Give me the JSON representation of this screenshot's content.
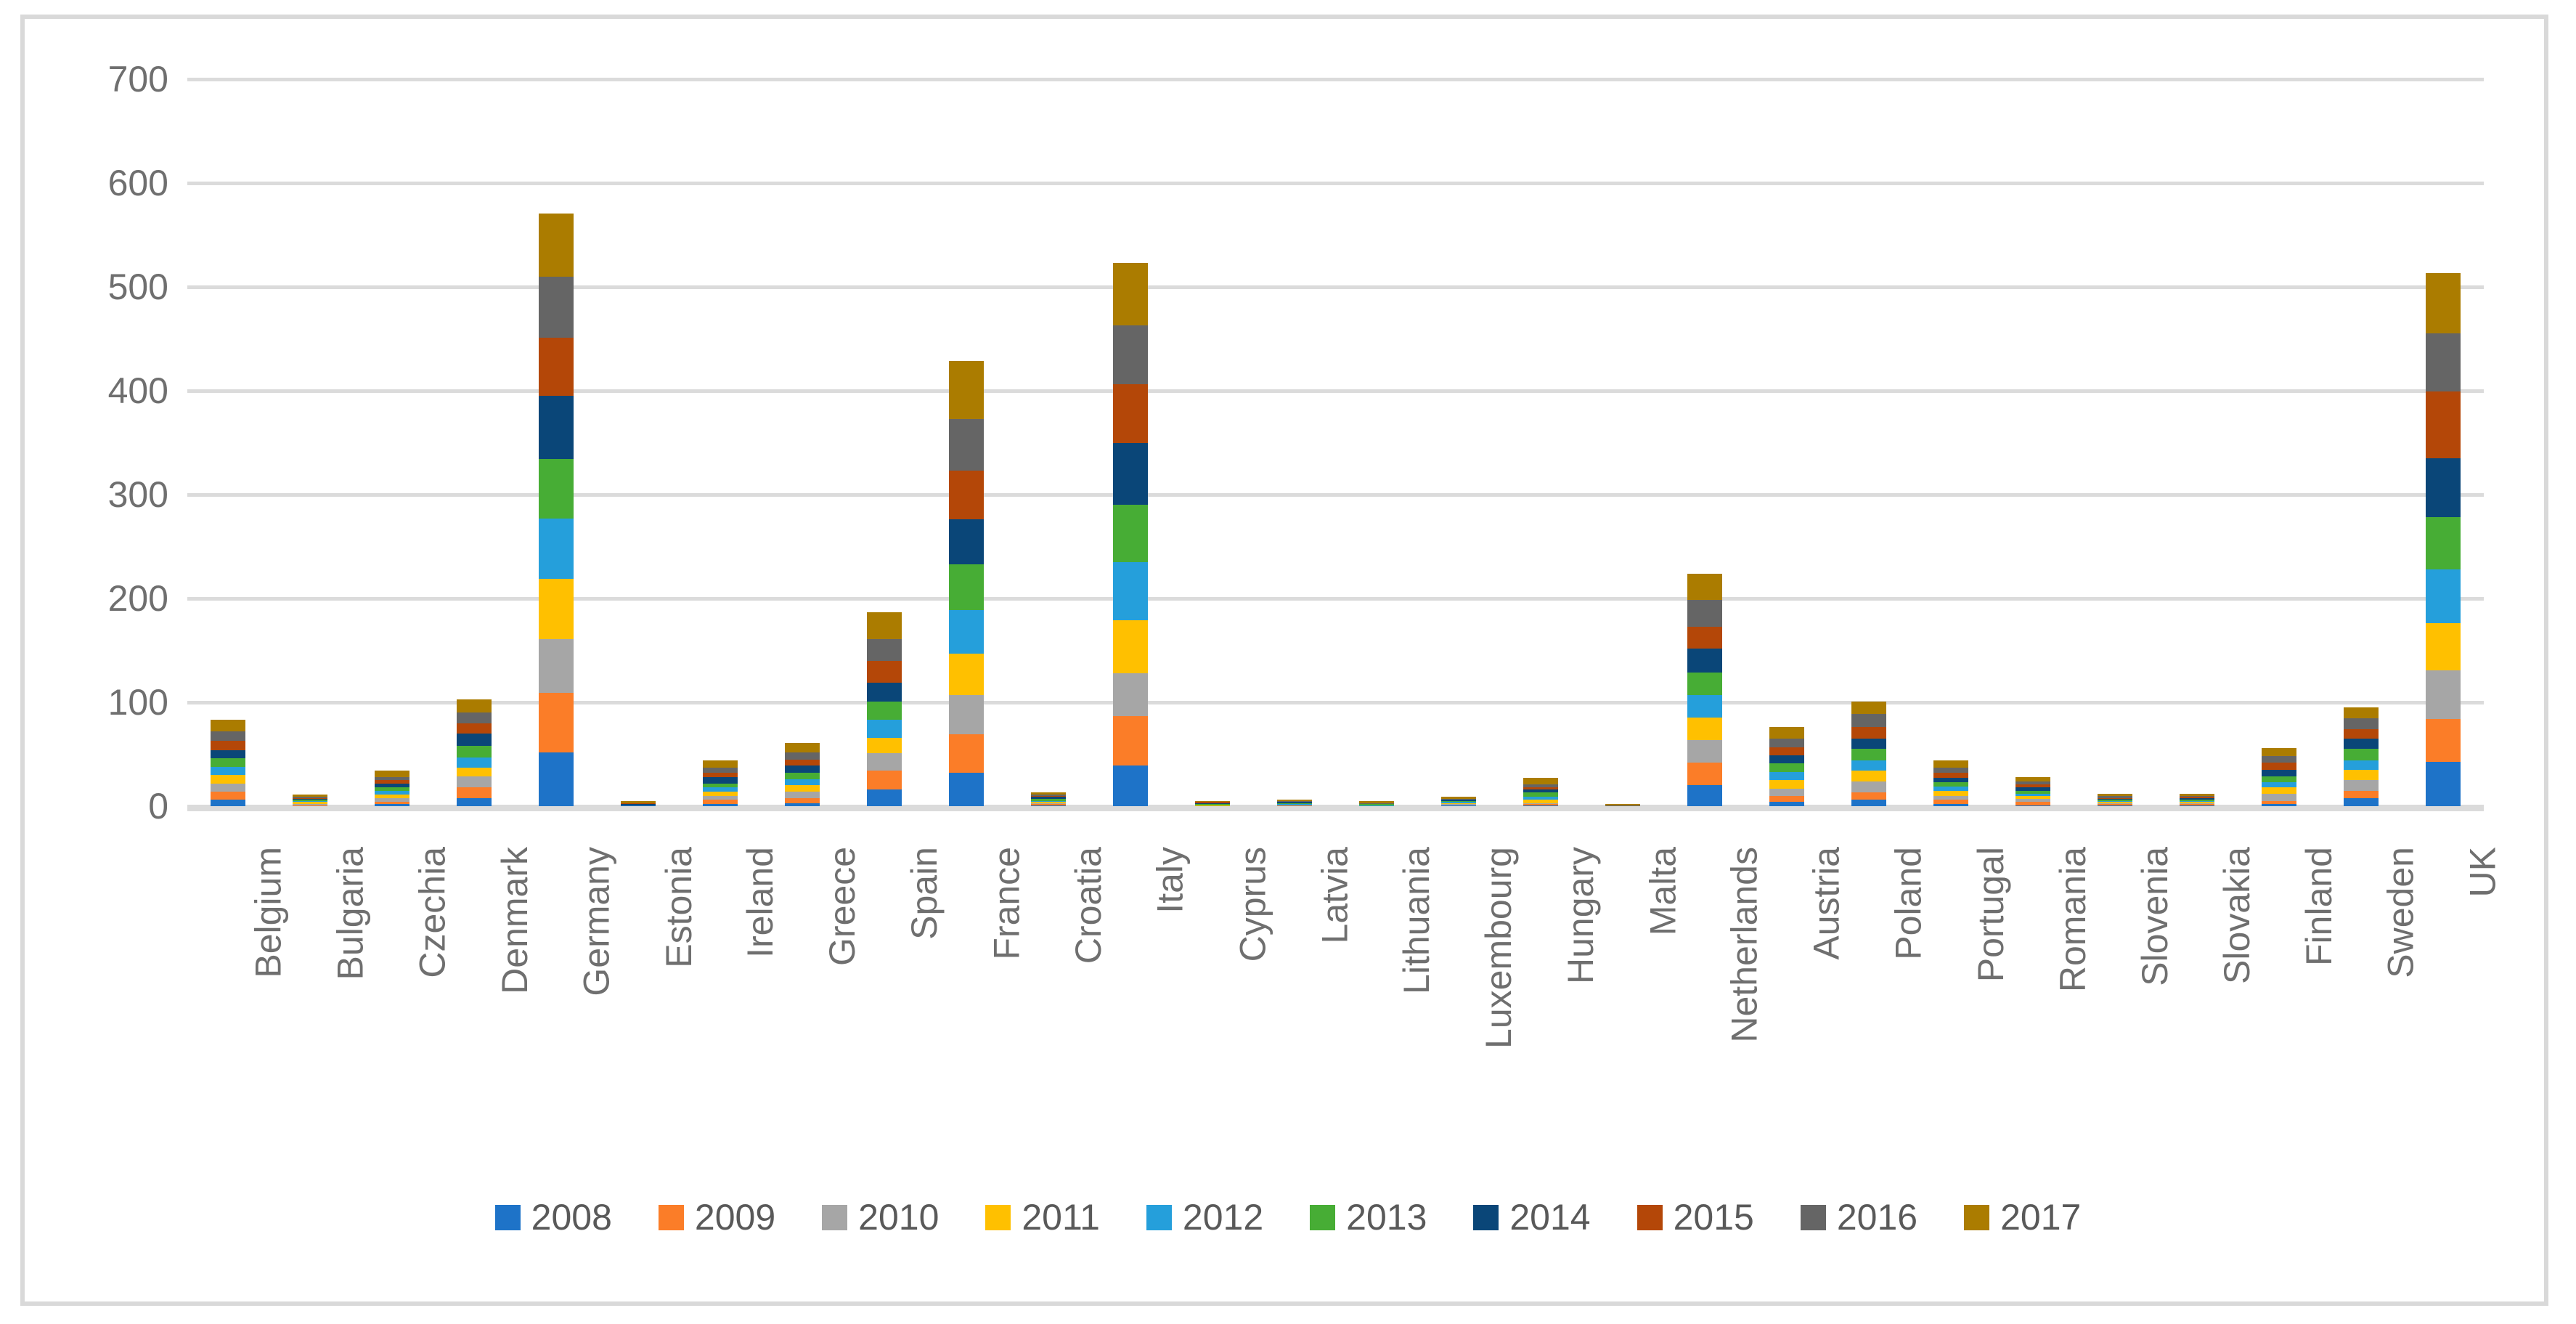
{
  "figure": {
    "background": "#FFFFFF",
    "border_color": "#D9D9D9"
  },
  "chart_data": {
    "type": "bar",
    "stacked": true,
    "title": "",
    "xlabel": "",
    "ylabel": "",
    "ylim": [
      0,
      700
    ],
    "y_ticks": [
      0,
      100,
      200,
      300,
      400,
      500,
      600,
      700
    ],
    "grid": "horizontal",
    "gridline_color": "#DBDBDB",
    "axis_text_color": "#6F6F6F",
    "legend_text_color": "#595959",
    "legend_position": "bottom",
    "categories": [
      "Belgium",
      "Bulgaria",
      "Czechia",
      "Denmark",
      "Germany",
      "Estonia",
      "Ireland",
      "Greece",
      "Spain",
      "France",
      "Croatia",
      "Italy",
      "Cyprus",
      "Latvia",
      "Lithuania",
      "Luxembourg",
      "Hungary",
      "Malta",
      "Netherlands",
      "Austria",
      "Poland",
      "Portugal",
      "Romania",
      "Slovenia",
      "Slovakia",
      "Finland",
      "Sweden",
      "UK"
    ],
    "series": [
      {
        "name": "2008",
        "color": "#1E73C8",
        "values": [
          6,
          0,
          2,
          8,
          52,
          1,
          2,
          3,
          16,
          32,
          1,
          39,
          0,
          0,
          0,
          1,
          1,
          0,
          20,
          4,
          6,
          2,
          1,
          1,
          1,
          2,
          8,
          43
        ]
      },
      {
        "name": "2009",
        "color": "#FB7D28",
        "values": [
          8,
          1,
          2,
          10,
          57,
          0,
          4,
          5,
          18,
          37,
          1,
          48,
          0,
          1,
          0,
          0,
          1,
          0,
          22,
          6,
          7,
          4,
          3,
          1,
          1,
          3,
          7,
          41
        ]
      },
      {
        "name": "2010",
        "color": "#A6A6A6",
        "values": [
          8,
          1,
          4,
          11,
          52,
          0,
          4,
          6,
          17,
          38,
          1,
          41,
          0,
          0,
          0,
          1,
          1,
          0,
          22,
          7,
          11,
          4,
          3,
          1,
          1,
          7,
          10,
          47
        ]
      },
      {
        "name": "2011",
        "color": "#FFC000",
        "values": [
          8,
          2,
          3,
          8,
          58,
          0,
          4,
          6,
          15,
          40,
          1,
          51,
          1,
          0,
          0,
          1,
          3,
          0,
          21,
          8,
          10,
          5,
          3,
          1,
          1,
          6,
          10,
          45
        ]
      },
      {
        "name": "2012",
        "color": "#259FDB",
        "values": [
          8,
          1,
          4,
          10,
          58,
          0,
          4,
          6,
          17,
          42,
          1,
          56,
          0,
          1,
          1,
          1,
          3,
          0,
          22,
          8,
          10,
          4,
          2,
          1,
          1,
          5,
          9,
          52
        ]
      },
      {
        "name": "2013",
        "color": "#47AD35",
        "values": [
          8,
          1,
          3,
          11,
          57,
          0,
          4,
          6,
          18,
          44,
          2,
          55,
          1,
          1,
          1,
          1,
          4,
          0,
          22,
          8,
          11,
          4,
          3,
          1,
          1,
          6,
          11,
          50
        ]
      },
      {
        "name": "2014",
        "color": "#0A4678",
        "values": [
          8,
          1,
          4,
          12,
          61,
          1,
          6,
          7,
          18,
          43,
          2,
          60,
          1,
          1,
          0,
          1,
          3,
          0,
          23,
          8,
          10,
          4,
          3,
          1,
          2,
          6,
          10,
          57
        ]
      },
      {
        "name": "2015",
        "color": "#B44708",
        "values": [
          9,
          1,
          3,
          10,
          56,
          1,
          4,
          6,
          21,
          47,
          1,
          56,
          1,
          0,
          0,
          0,
          2,
          0,
          21,
          8,
          11,
          5,
          3,
          1,
          1,
          7,
          9,
          64
        ]
      },
      {
        "name": "2016",
        "color": "#656565",
        "values": [
          9,
          1,
          3,
          10,
          59,
          0,
          5,
          7,
          21,
          50,
          1,
          57,
          0,
          1,
          1,
          1,
          3,
          1,
          26,
          8,
          13,
          5,
          3,
          2,
          1,
          6,
          11,
          56
        ]
      },
      {
        "name": "2017",
        "color": "#AB7C00",
        "values": [
          11,
          2,
          6,
          13,
          61,
          2,
          7,
          9,
          26,
          56,
          2,
          60,
          1,
          1,
          2,
          2,
          6,
          1,
          25,
          11,
          12,
          7,
          4,
          2,
          2,
          8,
          10,
          58
        ]
      }
    ]
  }
}
